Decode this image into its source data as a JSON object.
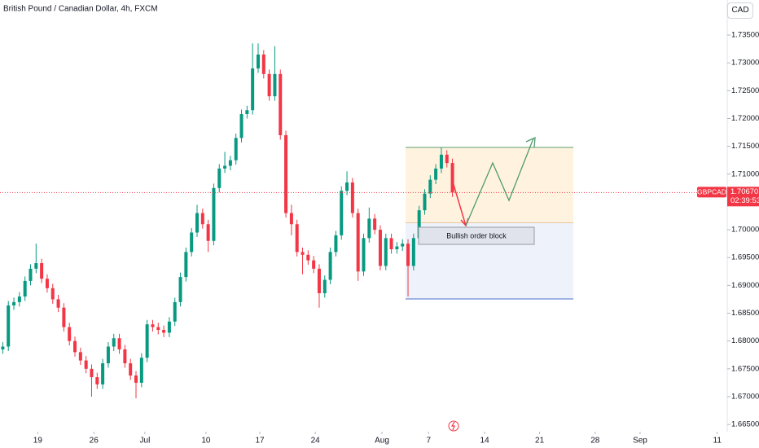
{
  "header": {
    "title": "British Pound / Canadian Dollar, 4h, FXCM",
    "currency": "CAD"
  },
  "chart_data": {
    "type": "candlestick",
    "up_color": "#089981",
    "down_color": "#f23645",
    "symbol": "GBPCAD",
    "last_price": {
      "value": 1.7067,
      "label": "1.70670"
    },
    "countdown": "02:39:53",
    "annotation": "Bullish order block",
    "xlim": [
      -0.5,
      130.5
    ],
    "ylim": [
      1.6637,
      1.7413
    ],
    "yticks": [
      {
        "value": 1.665,
        "label": "1.66500"
      },
      {
        "value": 1.67,
        "label": "1.67000"
      },
      {
        "value": 1.675,
        "label": "1.67500"
      },
      {
        "value": 1.68,
        "label": "1.68000"
      },
      {
        "value": 1.685,
        "label": "1.68500"
      },
      {
        "value": 1.69,
        "label": "1.69000"
      },
      {
        "value": 1.695,
        "label": "1.69500"
      },
      {
        "value": 1.7,
        "label": "1.70000"
      },
      {
        "value": 1.705,
        "label": "1.70500"
      },
      {
        "value": 1.71,
        "label": "1.71000"
      },
      {
        "value": 1.715,
        "label": "1.71500"
      },
      {
        "value": 1.72,
        "label": "1.72000"
      },
      {
        "value": 1.725,
        "label": "1.72500"
      },
      {
        "value": 1.73,
        "label": "1.73000"
      },
      {
        "value": 1.735,
        "label": "1.73500"
      }
    ],
    "xticks": [
      {
        "value": 6.3,
        "label": "19"
      },
      {
        "value": 16.4,
        "label": "26"
      },
      {
        "value": 25.6,
        "label": "Jul"
      },
      {
        "value": 36.6,
        "label": "10"
      },
      {
        "value": 46.3,
        "label": "17"
      },
      {
        "value": 56.3,
        "label": "24"
      },
      {
        "value": 68.3,
        "label": "Aug"
      },
      {
        "value": 76.7,
        "label": "7"
      },
      {
        "value": 86.8,
        "label": "14"
      },
      {
        "value": 96.7,
        "label": "21"
      },
      {
        "value": 106.7,
        "label": "28"
      },
      {
        "value": 114.8,
        "label": "Sep"
      },
      {
        "value": 128.7,
        "label": "11"
      }
    ],
    "candles": [
      {
        "o": 1.6785,
        "h": 1.6798,
        "l": 1.6777,
        "c": 1.679
      },
      {
        "o": 1.679,
        "h": 1.6872,
        "l": 1.6782,
        "c": 1.6864
      },
      {
        "o": 1.6864,
        "h": 1.6878,
        "l": 1.6856,
        "c": 1.687
      },
      {
        "o": 1.687,
        "h": 1.6888,
        "l": 1.6862,
        "c": 1.688
      },
      {
        "o": 1.688,
        "h": 1.6916,
        "l": 1.6872,
        "c": 1.6908
      },
      {
        "o": 1.6908,
        "h": 1.6938,
        "l": 1.69,
        "c": 1.693
      },
      {
        "o": 1.693,
        "h": 1.6975,
        "l": 1.6922,
        "c": 1.694
      },
      {
        "o": 1.694,
        "h": 1.6948,
        "l": 1.6904,
        "c": 1.6912
      },
      {
        "o": 1.6912,
        "h": 1.692,
        "l": 1.6887,
        "c": 1.6895
      },
      {
        "o": 1.6895,
        "h": 1.6903,
        "l": 1.6867,
        "c": 1.6875
      },
      {
        "o": 1.6875,
        "h": 1.6883,
        "l": 1.6852,
        "c": 1.686
      },
      {
        "o": 1.686,
        "h": 1.6868,
        "l": 1.6817,
        "c": 1.6825
      },
      {
        "o": 1.6825,
        "h": 1.6833,
        "l": 1.6792,
        "c": 1.68
      },
      {
        "o": 1.68,
        "h": 1.6808,
        "l": 1.6772,
        "c": 1.678
      },
      {
        "o": 1.678,
        "h": 1.6788,
        "l": 1.6757,
        "c": 1.6765
      },
      {
        "o": 1.6765,
        "h": 1.6773,
        "l": 1.6742,
        "c": 1.675
      },
      {
        "o": 1.675,
        "h": 1.6758,
        "l": 1.67,
        "c": 1.6735
      },
      {
        "o": 1.6735,
        "h": 1.6743,
        "l": 1.6714,
        "c": 1.6722
      },
      {
        "o": 1.6722,
        "h": 1.6768,
        "l": 1.6714,
        "c": 1.676
      },
      {
        "o": 1.676,
        "h": 1.6798,
        "l": 1.6752,
        "c": 1.679
      },
      {
        "o": 1.679,
        "h": 1.6813,
        "l": 1.6782,
        "c": 1.6805
      },
      {
        "o": 1.6805,
        "h": 1.6813,
        "l": 1.6777,
        "c": 1.6785
      },
      {
        "o": 1.6785,
        "h": 1.6793,
        "l": 1.6752,
        "c": 1.676
      },
      {
        "o": 1.676,
        "h": 1.6768,
        "l": 1.673,
        "c": 1.6738
      },
      {
        "o": 1.6738,
        "h": 1.6746,
        "l": 1.6697,
        "c": 1.6725
      },
      {
        "o": 1.6725,
        "h": 1.6778,
        "l": 1.6717,
        "c": 1.677
      },
      {
        "o": 1.677,
        "h": 1.6838,
        "l": 1.6762,
        "c": 1.683
      },
      {
        "o": 1.683,
        "h": 1.6838,
        "l": 1.6817,
        "c": 1.6825
      },
      {
        "o": 1.6825,
        "h": 1.6833,
        "l": 1.6812,
        "c": 1.682
      },
      {
        "o": 1.682,
        "h": 1.6828,
        "l": 1.6807,
        "c": 1.6815
      },
      {
        "o": 1.6815,
        "h": 1.6843,
        "l": 1.6807,
        "c": 1.6835
      },
      {
        "o": 1.6835,
        "h": 1.6878,
        "l": 1.6827,
        "c": 1.687
      },
      {
        "o": 1.687,
        "h": 1.6923,
        "l": 1.6862,
        "c": 1.6915
      },
      {
        "o": 1.6915,
        "h": 1.6968,
        "l": 1.6907,
        "c": 1.696
      },
      {
        "o": 1.696,
        "h": 1.7003,
        "l": 1.6952,
        "c": 1.6995
      },
      {
        "o": 1.6995,
        "h": 1.7045,
        "l": 1.6987,
        "c": 1.703
      },
      {
        "o": 1.703,
        "h": 1.7038,
        "l": 1.7002,
        "c": 1.701
      },
      {
        "o": 1.701,
        "h": 1.7018,
        "l": 1.696,
        "c": 1.698
      },
      {
        "o": 1.698,
        "h": 1.7083,
        "l": 1.6972,
        "c": 1.7075
      },
      {
        "o": 1.7075,
        "h": 1.7118,
        "l": 1.7067,
        "c": 1.711
      },
      {
        "o": 1.711,
        "h": 1.714,
        "l": 1.7102,
        "c": 1.7115
      },
      {
        "o": 1.7115,
        "h": 1.7133,
        "l": 1.7107,
        "c": 1.7125
      },
      {
        "o": 1.7125,
        "h": 1.7173,
        "l": 1.7117,
        "c": 1.7165
      },
      {
        "o": 1.7165,
        "h": 1.7216,
        "l": 1.7157,
        "c": 1.7208
      },
      {
        "o": 1.7208,
        "h": 1.7223,
        "l": 1.72,
        "c": 1.7215
      },
      {
        "o": 1.7215,
        "h": 1.7335,
        "l": 1.7207,
        "c": 1.729
      },
      {
        "o": 1.729,
        "h": 1.7335,
        "l": 1.7282,
        "c": 1.7315
      },
      {
        "o": 1.7315,
        "h": 1.7323,
        "l": 1.7272,
        "c": 1.728
      },
      {
        "o": 1.728,
        "h": 1.7288,
        "l": 1.7232,
        "c": 1.724
      },
      {
        "o": 1.724,
        "h": 1.733,
        "l": 1.7232,
        "c": 1.728
      },
      {
        "o": 1.728,
        "h": 1.7288,
        "l": 1.7162,
        "c": 1.717
      },
      {
        "o": 1.717,
        "h": 1.7178,
        "l": 1.7022,
        "c": 1.703
      },
      {
        "o": 1.703,
        "h": 1.7045,
        "l": 1.699,
        "c": 1.701
      },
      {
        "o": 1.701,
        "h": 1.7018,
        "l": 1.6952,
        "c": 1.696
      },
      {
        "o": 1.696,
        "h": 1.6968,
        "l": 1.692,
        "c": 1.6955
      },
      {
        "o": 1.6955,
        "h": 1.6963,
        "l": 1.6937,
        "c": 1.6945
      },
      {
        "o": 1.6945,
        "h": 1.6953,
        "l": 1.6922,
        "c": 1.693
      },
      {
        "o": 1.693,
        "h": 1.6938,
        "l": 1.686,
        "c": 1.6886
      },
      {
        "o": 1.6886,
        "h": 1.6918,
        "l": 1.6878,
        "c": 1.691
      },
      {
        "o": 1.691,
        "h": 1.6968,
        "l": 1.6902,
        "c": 1.696
      },
      {
        "o": 1.696,
        "h": 1.6998,
        "l": 1.6952,
        "c": 1.699
      },
      {
        "o": 1.699,
        "h": 1.7078,
        "l": 1.6982,
        "c": 1.707
      },
      {
        "o": 1.707,
        "h": 1.7105,
        "l": 1.7062,
        "c": 1.7085
      },
      {
        "o": 1.7085,
        "h": 1.7093,
        "l": 1.7022,
        "c": 1.703
      },
      {
        "o": 1.703,
        "h": 1.7038,
        "l": 1.6908,
        "c": 1.6925
      },
      {
        "o": 1.6925,
        "h": 1.6993,
        "l": 1.6917,
        "c": 1.6985
      },
      {
        "o": 1.6985,
        "h": 1.704,
        "l": 1.6977,
        "c": 1.702
      },
      {
        "o": 1.702,
        "h": 1.7028,
        "l": 1.6992,
        "c": 1.7
      },
      {
        "o": 1.7,
        "h": 1.7008,
        "l": 1.6927,
        "c": 1.6935
      },
      {
        "o": 1.6935,
        "h": 1.6993,
        "l": 1.6927,
        "c": 1.6985
      },
      {
        "o": 1.6985,
        "h": 1.6993,
        "l": 1.6957,
        "c": 1.6965
      },
      {
        "o": 1.6965,
        "h": 1.6978,
        "l": 1.6957,
        "c": 1.697
      },
      {
        "o": 1.697,
        "h": 1.6983,
        "l": 1.6962,
        "c": 1.6975
      },
      {
        "o": 1.6975,
        "h": 1.6983,
        "l": 1.688,
        "c": 1.6935
      },
      {
        "o": 1.6935,
        "h": 1.6993,
        "l": 1.6927,
        "c": 1.6985
      },
      {
        "o": 1.6985,
        "h": 1.7043,
        "l": 1.6977,
        "c": 1.7035
      },
      {
        "o": 1.7035,
        "h": 1.7073,
        "l": 1.7027,
        "c": 1.7065
      },
      {
        "o": 1.7065,
        "h": 1.7098,
        "l": 1.7057,
        "c": 1.709
      },
      {
        "o": 1.709,
        "h": 1.7118,
        "l": 1.7082,
        "c": 1.711
      },
      {
        "o": 1.711,
        "h": 1.7148,
        "l": 1.7102,
        "c": 1.7135
      },
      {
        "o": 1.7135,
        "h": 1.7143,
        "l": 1.7112,
        "c": 1.712
      },
      {
        "o": 1.712,
        "h": 1.7128,
        "l": 1.7059,
        "c": 1.7067
      }
    ]
  }
}
